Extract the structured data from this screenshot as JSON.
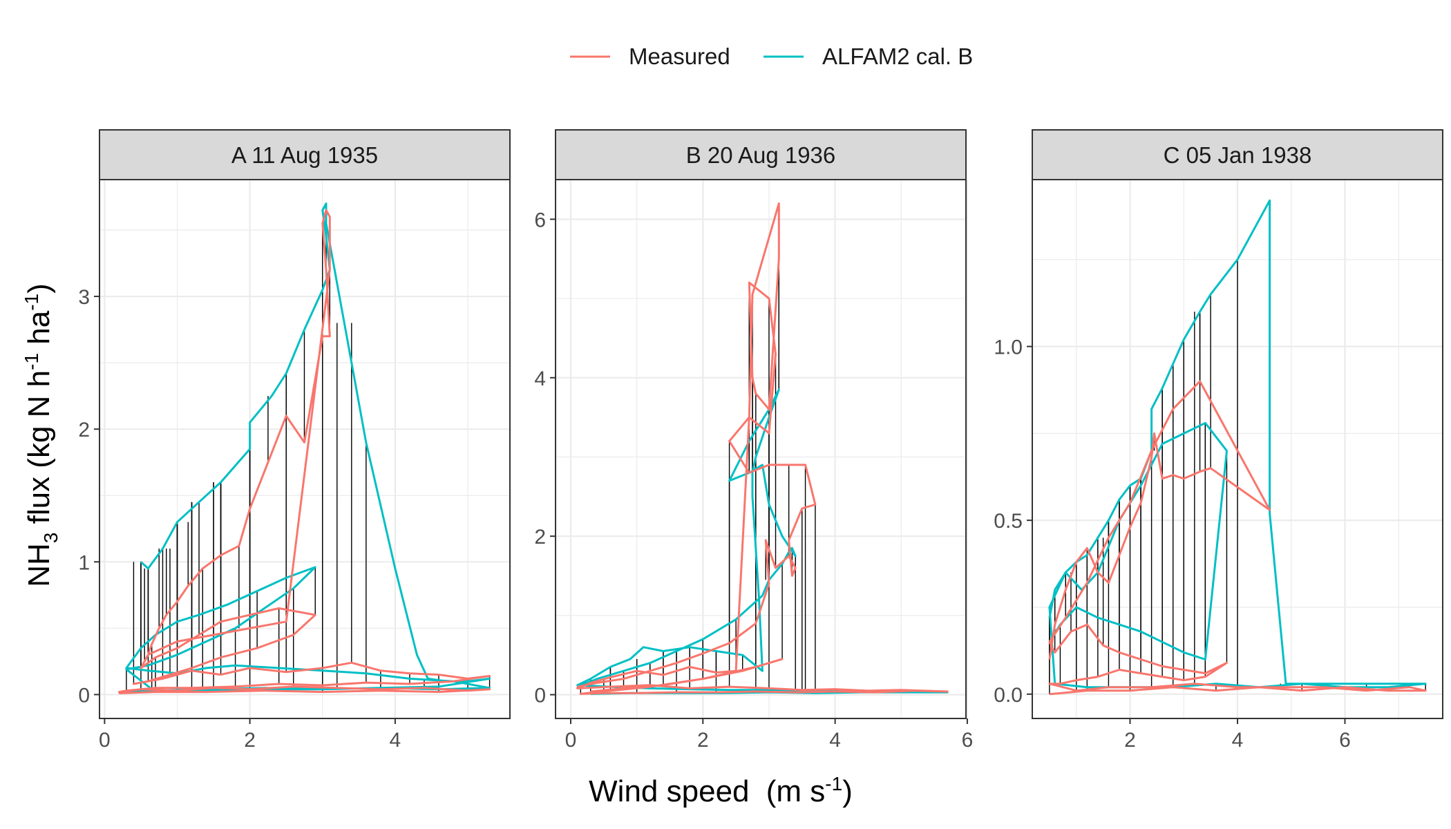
{
  "legend": {
    "placement": "top",
    "items": [
      {
        "label": "Measured",
        "color": "#F8766D"
      },
      {
        "label": "ALFAM2 cal. B",
        "color": "#00BFC4"
      }
    ]
  },
  "axis_titles": {
    "x_main": "Wind speed",
    "x_unit_html": "(m s-1)",
    "y_main": "NH3 flux",
    "y_unit_html": "(kg N h-1 ha-1)"
  },
  "colors": {
    "measured": "#F8766D",
    "modeled": "#00BFC4",
    "residual": "#000000",
    "strip_bg": "#D9D9D9",
    "grid": "#EBEBEB"
  },
  "chart_data": [
    {
      "type": "line",
      "panel": "A 11 Aug 1935",
      "xlabel": "Wind speed (m s-1)",
      "ylabel": "NH3 flux (kg N h-1 ha-1)",
      "xlim": [
        -0.07,
        5.58
      ],
      "ylim": [
        -0.18,
        3.88
      ],
      "xticks": [
        0,
        2,
        4
      ],
      "yticks": [
        0,
        1,
        2,
        3
      ],
      "grid": true,
      "series": [
        {
          "name": "Measured",
          "x": [
            0.5,
            0.55,
            0.6,
            0.65,
            0.75,
            0.85,
            1.0,
            1.15,
            1.35,
            1.6,
            1.85,
            2.0,
            2.25,
            2.5,
            2.75,
            3.0,
            3.1,
            3.05,
            3.0,
            3.05,
            3.1,
            3.1,
            2.5,
            2.0,
            1.5,
            1.0,
            0.6,
            0.5,
            0.7,
            1.0,
            1.3,
            1.6,
            2.0,
            2.4,
            2.9,
            2.6,
            2.1,
            1.6,
            1.2,
            0.9,
            0.6,
            0.4,
            0.8,
            1.2,
            1.6,
            2.0,
            2.5,
            3.0,
            3.4,
            3.8,
            4.2,
            4.6,
            5.0,
            5.3,
            4.8,
            4.2,
            3.6,
            3.0,
            2.4,
            1.8,
            1.2,
            0.7,
            0.3,
            0.2,
            0.5,
            1.0,
            1.5,
            2.0,
            2.6,
            3.2,
            3.8,
            4.4,
            5.0,
            5.3,
            4.6,
            3.8,
            3.0,
            2.2,
            1.4,
            0.7,
            0.2
          ],
          "y": [
            0.2,
            0.25,
            0.3,
            0.38,
            0.5,
            0.6,
            0.7,
            0.82,
            0.95,
            1.05,
            1.12,
            1.4,
            1.75,
            2.1,
            1.9,
            2.7,
            2.7,
            3.2,
            3.55,
            3.65,
            3.6,
            3.2,
            0.55,
            0.5,
            0.45,
            0.4,
            0.3,
            0.2,
            0.28,
            0.35,
            0.45,
            0.55,
            0.6,
            0.65,
            0.6,
            0.45,
            0.35,
            0.28,
            0.2,
            0.15,
            0.1,
            0.08,
            0.12,
            0.18,
            0.15,
            0.2,
            0.17,
            0.2,
            0.24,
            0.18,
            0.16,
            0.15,
            0.12,
            0.14,
            0.1,
            0.08,
            0.09,
            0.07,
            0.08,
            0.06,
            0.05,
            0.05,
            0.03,
            0.02,
            0.04,
            0.03,
            0.05,
            0.04,
            0.06,
            0.05,
            0.04,
            0.05,
            0.03,
            0.04,
            0.02,
            0.03,
            0.02,
            0.03,
            0.02,
            0.02,
            0.01
          ]
        },
        {
          "name": "ALFAM2 cal. B",
          "x": [
            0.5,
            0.6,
            0.8,
            1.0,
            1.3,
            1.6,
            2.0,
            2.0,
            2.3,
            2.5,
            2.75,
            3.0,
            3.1,
            3.05,
            3.0,
            3.05,
            3.05,
            3.3,
            3.6,
            4.0,
            4.3,
            4.45,
            4.7,
            5.0,
            5.3,
            4.6,
            3.8,
            3.0,
            2.2,
            1.4,
            0.7,
            0.3,
            0.6,
            1.0,
            1.4,
            1.8,
            2.2,
            2.6,
            2.9,
            2.5,
            2.1,
            1.7,
            1.3,
            1.0,
            0.7,
            0.5,
            0.3,
            0.6,
            1.0,
            1.4,
            1.8,
            2.4,
            3.0,
            3.6,
            4.2,
            4.8,
            5.3,
            4.6,
            3.8,
            3.0,
            2.2,
            1.4,
            0.7,
            0.2
          ],
          "y": [
            1.0,
            0.95,
            1.1,
            1.3,
            1.45,
            1.6,
            1.85,
            2.05,
            2.25,
            2.42,
            2.75,
            3.05,
            3.2,
            3.45,
            3.65,
            3.7,
            3.55,
            2.8,
            1.9,
            0.95,
            0.3,
            0.12,
            0.1,
            0.1,
            0.12,
            0.06,
            0.05,
            0.04,
            0.04,
            0.03,
            0.02,
            0.19,
            0.22,
            0.3,
            0.4,
            0.5,
            0.65,
            0.8,
            0.96,
            0.88,
            0.78,
            0.68,
            0.6,
            0.55,
            0.45,
            0.35,
            0.2,
            0.18,
            0.16,
            0.2,
            0.22,
            0.2,
            0.18,
            0.16,
            0.12,
            0.1,
            0.05,
            0.04,
            0.05,
            0.04,
            0.05,
            0.04,
            0.03,
            0.02
          ]
        }
      ]
    },
    {
      "type": "line",
      "panel": "B 20 Aug 1936",
      "xlabel": "Wind speed (m s-1)",
      "ylabel": "NH3 flux (kg N h-1 ha-1)",
      "xlim": [
        -0.23,
        5.98
      ],
      "ylim": [
        -0.3,
        6.5
      ],
      "xticks": [
        0,
        2,
        4,
        6
      ],
      "yticks": [
        0,
        2,
        4,
        6
      ],
      "grid": true,
      "series": [
        {
          "name": "Measured",
          "x": [
            0.1,
            0.4,
            0.8,
            1.2,
            1.6,
            2.0,
            2.4,
            2.8,
            3.0,
            2.95,
            3.1,
            3.3,
            3.4,
            3.35,
            3.3,
            3.5,
            3.7,
            3.55,
            3.3,
            3.0,
            2.7,
            2.4,
            2.7,
            3.0,
            3.1,
            3.0,
            2.7,
            2.75,
            2.8,
            3.0,
            3.15,
            3.15,
            2.75,
            2.7,
            2.5,
            2.2,
            1.8,
            1.4,
            1.0,
            0.6,
            0.3,
            0.1,
            0.6,
            1.2,
            1.8,
            2.4,
            3.0,
            3.5,
            4.0,
            4.5,
            5.0,
            5.7,
            5.2,
            4.6,
            4.0,
            3.4,
            2.8,
            2.2,
            1.6,
            1.0,
            0.5,
            0.15,
            0.6,
            1.2,
            2.0,
            2.8,
            3.2,
            2.6,
            2.0,
            1.4,
            0.8,
            0.3
          ],
          "y": [
            0.1,
            0.15,
            0.2,
            0.3,
            0.4,
            0.52,
            0.65,
            0.9,
            1.4,
            1.95,
            1.6,
            1.75,
            1.6,
            1.5,
            1.95,
            2.35,
            2.4,
            2.9,
            2.9,
            2.9,
            2.8,
            3.2,
            3.5,
            3.3,
            4.3,
            5.0,
            5.2,
            4.0,
            3.8,
            3.6,
            5.5,
            6.2,
            5.05,
            3.5,
            0.3,
            0.28,
            0.35,
            0.25,
            0.3,
            0.22,
            0.15,
            0.08,
            0.1,
            0.12,
            0.08,
            0.1,
            0.08,
            0.06,
            0.07,
            0.05,
            0.06,
            0.04,
            0.05,
            0.03,
            0.04,
            0.03,
            0.04,
            0.03,
            0.03,
            0.02,
            0.02,
            0.01,
            0.05,
            0.1,
            0.2,
            0.35,
            0.45,
            0.3,
            0.2,
            0.12,
            0.08,
            0.04
          ]
        },
        {
          "name": "ALFAM2 cal. B",
          "x": [
            0.1,
            0.4,
            0.8,
            1.2,
            1.6,
            2.0,
            2.5,
            2.9,
            3.0,
            3.2,
            3.3,
            3.35,
            3.4,
            3.2,
            3.0,
            2.9,
            2.7,
            2.4,
            2.7,
            3.0,
            3.15,
            3.0,
            2.8,
            2.75,
            2.75,
            2.85,
            2.9,
            2.6,
            2.2,
            1.8,
            1.4,
            1.1,
            0.9,
            0.6,
            0.3,
            0.1,
            0.6,
            1.2,
            1.8,
            2.4,
            3.0,
            3.6,
            4.2,
            4.8,
            5.4,
            5.7,
            5.1,
            4.4,
            3.7,
            3.0,
            2.3,
            1.6,
            0.9,
            0.3
          ],
          "y": [
            0.1,
            0.2,
            0.3,
            0.4,
            0.55,
            0.7,
            0.95,
            1.25,
            1.45,
            1.65,
            1.8,
            1.85,
            1.75,
            2.0,
            2.4,
            2.9,
            2.8,
            2.7,
            3.2,
            3.6,
            3.85,
            3.5,
            3.0,
            2.8,
            2.5,
            1.2,
            0.3,
            0.5,
            0.55,
            0.6,
            0.55,
            0.6,
            0.45,
            0.35,
            0.2,
            0.12,
            0.1,
            0.08,
            0.07,
            0.06,
            0.06,
            0.05,
            0.05,
            0.04,
            0.04,
            0.03,
            0.03,
            0.03,
            0.02,
            0.03,
            0.02,
            0.02,
            0.02,
            0.01
          ]
        }
      ]
    },
    {
      "type": "line",
      "panel": "C 05 Jan 1938",
      "xlabel": "Wind speed (m s-1)",
      "ylabel": "NH3 flux (kg N h-1 ha-1)",
      "xlim": [
        0.18,
        7.82
      ],
      "ylim": [
        -0.07,
        1.48
      ],
      "xticks": [
        2,
        4,
        6
      ],
      "yticks": [
        0.0,
        0.5,
        1.0
      ],
      "grid": true,
      "series": [
        {
          "name": "Measured",
          "x": [
            0.5,
            0.6,
            0.8,
            1.0,
            1.2,
            1.4,
            1.6,
            1.8,
            2.0,
            2.2,
            2.4,
            2.45,
            2.6,
            2.8,
            3.0,
            3.3,
            3.5,
            4.6,
            3.3,
            2.8,
            2.4,
            2.0,
            1.6,
            1.2,
            0.8,
            0.5,
            0.6,
            0.9,
            1.2,
            1.5,
            1.8,
            2.2,
            2.6,
            3.0,
            3.4,
            3.8,
            3.4,
            3.0,
            2.6,
            2.2,
            1.8,
            1.4,
            1.0,
            0.7,
            0.5,
            1.0,
            1.6,
            2.4,
            3.2,
            4.0,
            4.8,
            5.6,
            6.4,
            7.2,
            7.5,
            6.8,
            6.0,
            5.2,
            4.4,
            3.6,
            2.8,
            2.0,
            1.2,
            0.5
          ],
          "y": [
            0.1,
            0.2,
            0.3,
            0.38,
            0.42,
            0.35,
            0.32,
            0.4,
            0.48,
            0.55,
            0.68,
            0.75,
            0.62,
            0.63,
            0.62,
            0.64,
            0.65,
            0.53,
            0.9,
            0.82,
            0.7,
            0.55,
            0.45,
            0.32,
            0.22,
            0.15,
            0.12,
            0.18,
            0.2,
            0.14,
            0.12,
            0.1,
            0.08,
            0.07,
            0.06,
            0.09,
            0.05,
            0.04,
            0.05,
            0.06,
            0.07,
            0.05,
            0.04,
            0.03,
            0.03,
            0.01,
            0.02,
            0.02,
            0.03,
            0.02,
            0.02,
            0.02,
            0.01,
            0.02,
            0.01,
            0.01,
            0.02,
            0.01,
            0.02,
            0.01,
            0.02,
            0.01,
            0.01,
            0.0
          ]
        },
        {
          "name": "ALFAM2 cal. B",
          "x": [
            0.5,
            0.6,
            0.8,
            1.0,
            1.2,
            1.4,
            1.6,
            1.8,
            2.0,
            2.2,
            2.4,
            2.4,
            2.6,
            2.8,
            3.0,
            3.3,
            3.5,
            4.0,
            4.6,
            4.6,
            4.9,
            5.5,
            6.2,
            7.0,
            7.5,
            6.8,
            6.0,
            5.2,
            4.4,
            3.6,
            2.8,
            2.0,
            1.2,
            0.6,
            0.5,
            0.8,
            1.1,
            1.4,
            1.8,
            2.2,
            2.6,
            3.0,
            3.4,
            3.8,
            3.4,
            3.0,
            2.6,
            2.2,
            1.8,
            1.4,
            1.0,
            0.7,
            0.5
          ],
          "y": [
            0.22,
            0.3,
            0.35,
            0.38,
            0.4,
            0.45,
            0.5,
            0.56,
            0.6,
            0.62,
            0.7,
            0.82,
            0.88,
            0.95,
            1.02,
            1.1,
            1.15,
            1.25,
            1.42,
            0.52,
            0.03,
            0.03,
            0.03,
            0.03,
            0.03,
            0.02,
            0.02,
            0.03,
            0.02,
            0.03,
            0.02,
            0.02,
            0.02,
            0.03,
            0.25,
            0.35,
            0.3,
            0.35,
            0.5,
            0.6,
            0.72,
            0.75,
            0.78,
            0.7,
            0.1,
            0.12,
            0.15,
            0.18,
            0.2,
            0.22,
            0.25,
            0.2,
            0.15
          ]
        }
      ]
    }
  ]
}
